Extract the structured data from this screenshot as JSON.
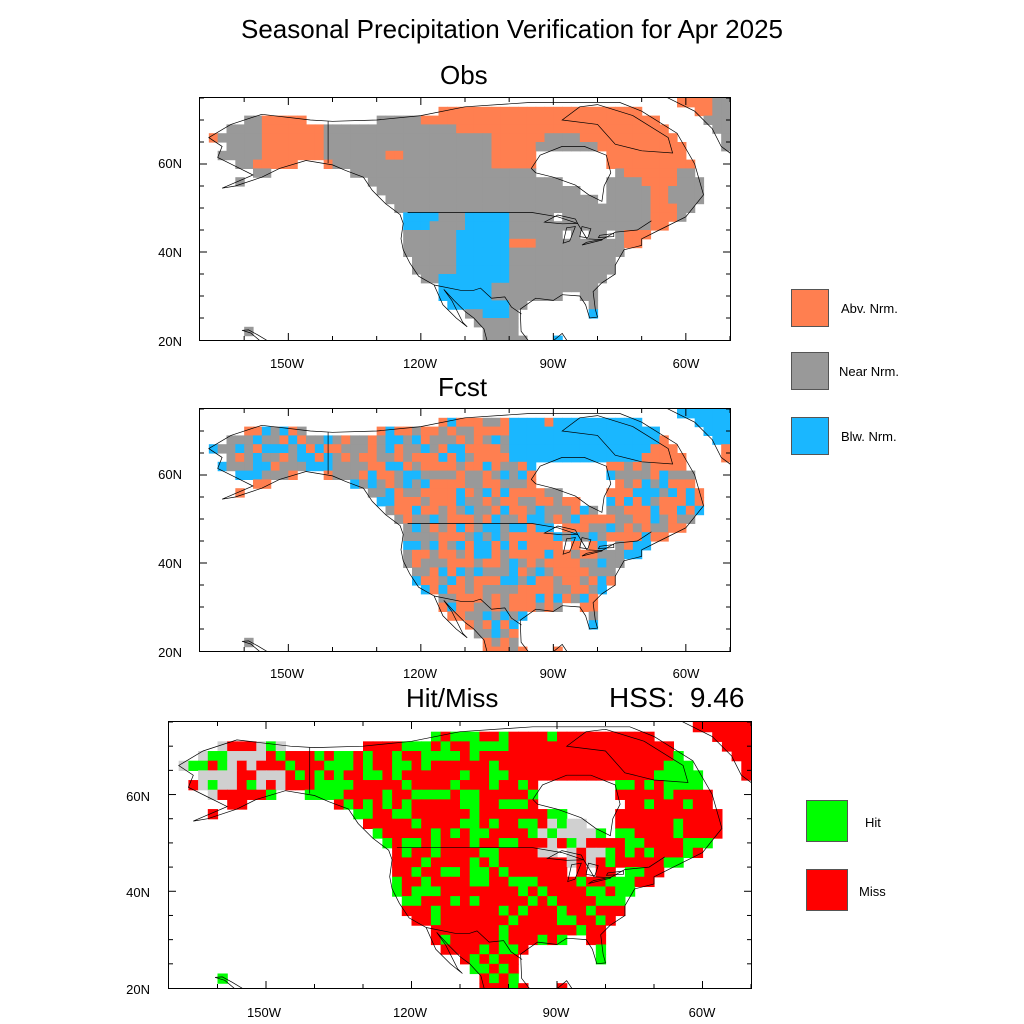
{
  "title": "Seasonal Precipitation Verification for Apr 2025",
  "panels": {
    "obs": {
      "title": "Obs"
    },
    "fcst": {
      "title": "Fcst"
    },
    "hit": {
      "title": "Hit/Miss",
      "hss_label": "HSS:",
      "hss_value": "9.46"
    }
  },
  "axes": {
    "lat_labels": [
      "60N",
      "40N",
      "20N"
    ],
    "lon_labels": [
      "150W",
      "120W",
      "90W",
      "60W"
    ]
  },
  "legend_category": [
    {
      "label": "Abv. Nrm.",
      "color": "#ff7f50"
    },
    {
      "label": "Near Nrm.",
      "color": "#999999"
    },
    {
      "label": "Blw. Nrm.",
      "color": "#1ab7ff"
    }
  ],
  "legend_hit": [
    {
      "label": "Hit",
      "color": "#00ff00"
    },
    {
      "label": "Miss",
      "color": "#ff0000"
    }
  ],
  "colors": {
    "above": "#ff7f50",
    "near": "#999999",
    "below": "#1ab7ff",
    "hit": "#00ff00",
    "miss": "#ff0000",
    "nodata_land": "#d0d0d0"
  },
  "map_extent": {
    "lon_min": -170,
    "lon_max": -50,
    "lat_min": 20,
    "lat_max": 75
  }
}
